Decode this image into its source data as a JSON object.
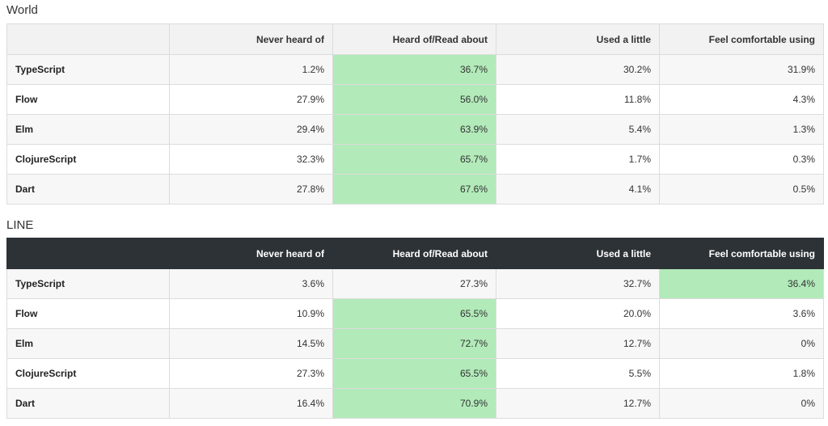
{
  "colors": {
    "highlight": "#b2eab9",
    "header_dark": "#2d3237",
    "header_light": "#f2f2f2"
  },
  "columns": [
    "",
    "Never heard of",
    "Heard of/Read about",
    "Used a little",
    "Feel comfortable using"
  ],
  "world": {
    "title": "World",
    "rows": [
      {
        "label": "TypeScript",
        "values": [
          "1.2%",
          "36.7%",
          "30.2%",
          "31.9%"
        ],
        "highlight": 1
      },
      {
        "label": "Flow",
        "values": [
          "27.9%",
          "56.0%",
          "11.8%",
          "4.3%"
        ],
        "highlight": 1
      },
      {
        "label": "Elm",
        "values": [
          "29.4%",
          "63.9%",
          "5.4%",
          "1.3%"
        ],
        "highlight": 1
      },
      {
        "label": "ClojureScript",
        "values": [
          "32.3%",
          "65.7%",
          "1.7%",
          "0.3%"
        ],
        "highlight": 1
      },
      {
        "label": "Dart",
        "values": [
          "27.8%",
          "67.6%",
          "4.1%",
          "0.5%"
        ],
        "highlight": 1
      }
    ]
  },
  "line": {
    "title": "LINE",
    "rows": [
      {
        "label": "TypeScript",
        "values": [
          "3.6%",
          "27.3%",
          "32.7%",
          "36.4%"
        ],
        "highlight": 3
      },
      {
        "label": "Flow",
        "values": [
          "10.9%",
          "65.5%",
          "20.0%",
          "3.6%"
        ],
        "highlight": 1
      },
      {
        "label": "Elm",
        "values": [
          "14.5%",
          "72.7%",
          "12.7%",
          "0%"
        ],
        "highlight": 1
      },
      {
        "label": "ClojureScript",
        "values": [
          "27.3%",
          "65.5%",
          "5.5%",
          "1.8%"
        ],
        "highlight": 1
      },
      {
        "label": "Dart",
        "values": [
          "16.4%",
          "70.9%",
          "12.7%",
          "0%"
        ],
        "highlight": 1
      }
    ]
  }
}
